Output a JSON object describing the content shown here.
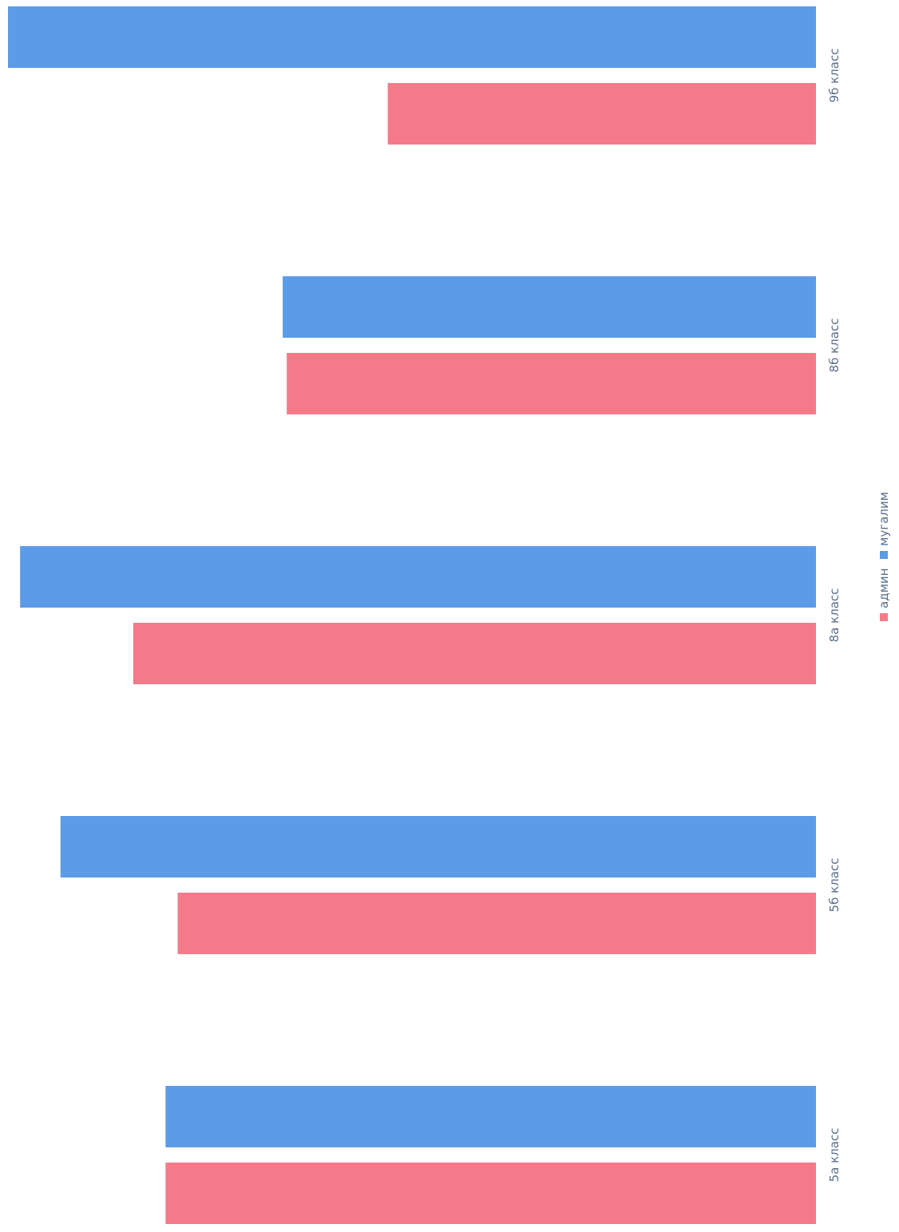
{
  "chart_data": {
    "type": "bar",
    "orientation": "horizontal",
    "categories": [
      "9б класс",
      "8б класс",
      "8а класс",
      "5б класс",
      "5а класс"
    ],
    "series": [
      {
        "name": "мугалим",
        "color": "#5b9be8",
        "values": [
          100,
          66,
          98.5,
          93.5,
          80.5
        ]
      },
      {
        "name": "админ",
        "color": "#f47a8a",
        "values": [
          53,
          65.5,
          84.5,
          79,
          80.5
        ]
      }
    ],
    "xlim": [
      0,
      100
    ],
    "grid": false,
    "legend": "bottom",
    "title": "",
    "xlabel": "",
    "ylabel": ""
  }
}
